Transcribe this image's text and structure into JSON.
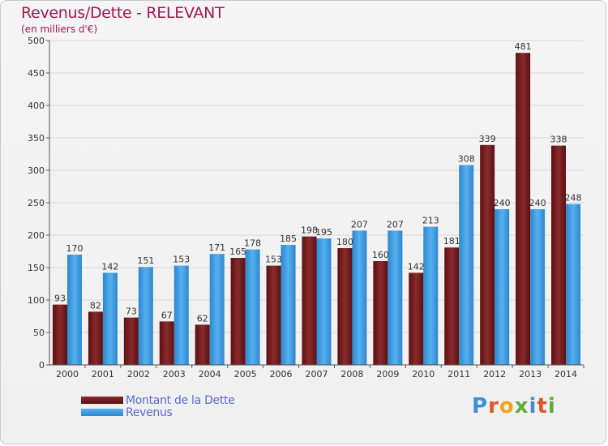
{
  "title": "Revenus/Dette - RELEVANT",
  "subtitle": "(en milliers d'€)",
  "legend": {
    "debt_label": "Montant de la Dette",
    "revenue_label": "Revenus"
  },
  "logo": {
    "text": "Proxiti"
  },
  "colors": {
    "debt": "#7a1f22",
    "revenue": "#3f9fe6",
    "title": "#a3174c"
  },
  "chart_data": {
    "type": "bar",
    "categories": [
      "2000",
      "2001",
      "2002",
      "2003",
      "2004",
      "2005",
      "2006",
      "2007",
      "2008",
      "2009",
      "2010",
      "2011",
      "2012",
      "2013",
      "2014"
    ],
    "series": [
      {
        "name": "Montant de la Dette",
        "values": [
          93,
          82,
          73,
          67,
          62,
          165,
          153,
          198,
          180,
          160,
          142,
          181,
          339,
          481,
          338
        ]
      },
      {
        "name": "Revenus",
        "values": [
          170,
          142,
          151,
          153,
          171,
          178,
          185,
          195,
          207,
          207,
          213,
          308,
          240,
          240,
          248
        ]
      }
    ],
    "ylim": [
      0,
      500
    ],
    "yticks": [
      0,
      50,
      100,
      150,
      200,
      250,
      300,
      350,
      400,
      450,
      500
    ],
    "grid": true
  }
}
